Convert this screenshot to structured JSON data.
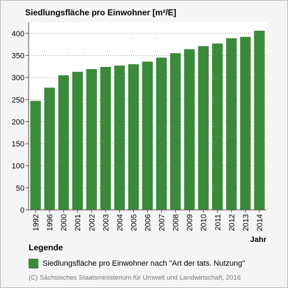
{
  "chart_data": {
    "type": "bar",
    "title": "Siedlungsfläche pro Einwohner [m²/E]",
    "xlabel": "Jahr",
    "ylabel": "",
    "ylim": [
      0,
      425
    ],
    "yticks": [
      0,
      50,
      100,
      150,
      200,
      250,
      300,
      350,
      400
    ],
    "grid": true,
    "categories": [
      "1992",
      "1996",
      "2000",
      "2001",
      "2002",
      "2003",
      "2004",
      "2005",
      "2006",
      "2007",
      "2008",
      "2009",
      "2010",
      "2011",
      "2012",
      "2013",
      "2014"
    ],
    "series": [
      {
        "name": "Siedlungsfläche pro Einwohner nach \"Art der tats. Nutzung\"",
        "color": "#3a8a3a",
        "values": [
          247,
          277,
          305,
          313,
          319,
          324,
          327,
          330,
          336,
          345,
          355,
          364,
          371,
          377,
          389,
          392,
          406
        ]
      }
    ]
  },
  "legend": {
    "heading": "Legende",
    "label": "Siedlungsfläche pro Einwohner nach \"Art der tats. Nutzung\""
  },
  "copyright": "(C) Sächsisches Staatsministerium für Umwelt und Landwirtschaft, 2016"
}
